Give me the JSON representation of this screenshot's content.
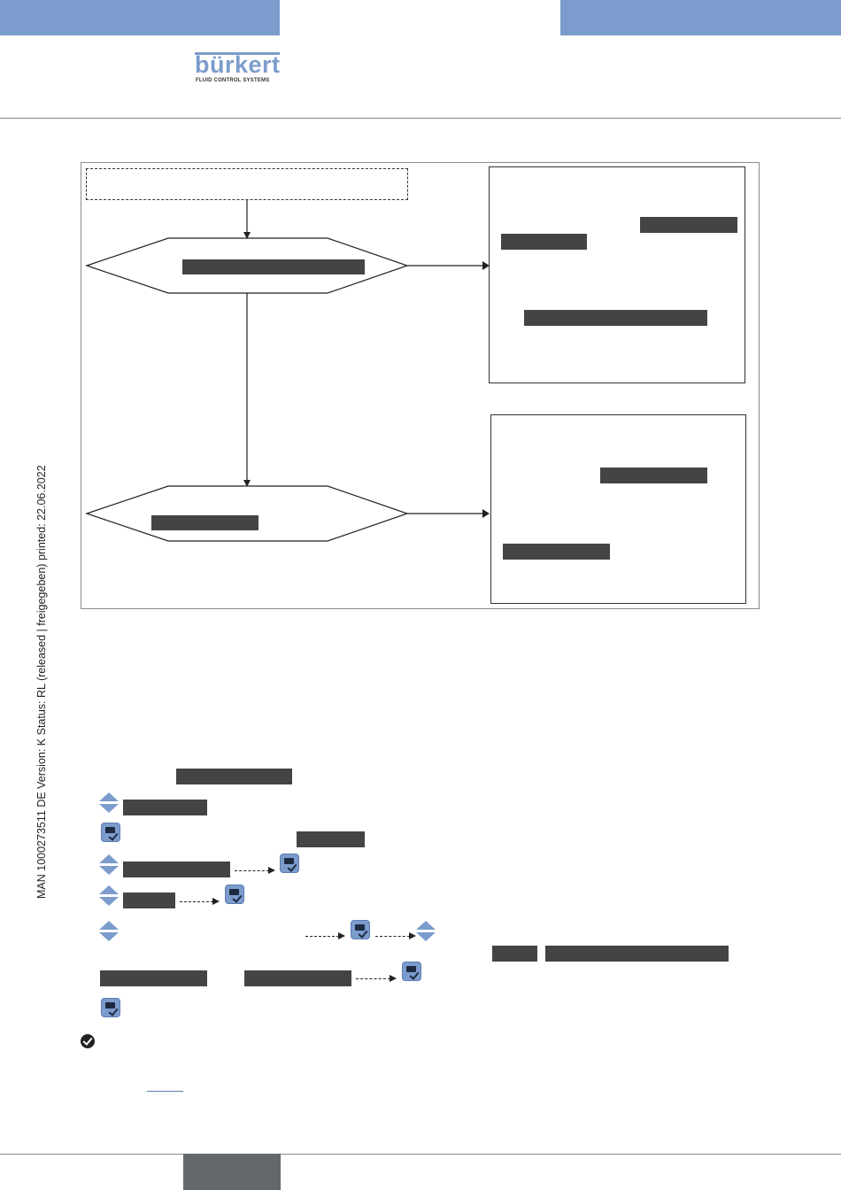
{
  "header": {
    "brand": "bürkert",
    "brand_tagline": "FLUID CONTROL SYSTEMS",
    "colors": {
      "accent": "#7b9ccc",
      "redaction": "#444444",
      "footer_tab": "#64676c"
    }
  },
  "sidebar_stamp": "MAN  1000273511  DE  Version: K Status: RL (released | freigegeben)  printed: 22.06.2022",
  "icons": {
    "enter": "enter-key-icon",
    "updown": "up-down-arrows-icon",
    "done": "check-circle-icon"
  }
}
